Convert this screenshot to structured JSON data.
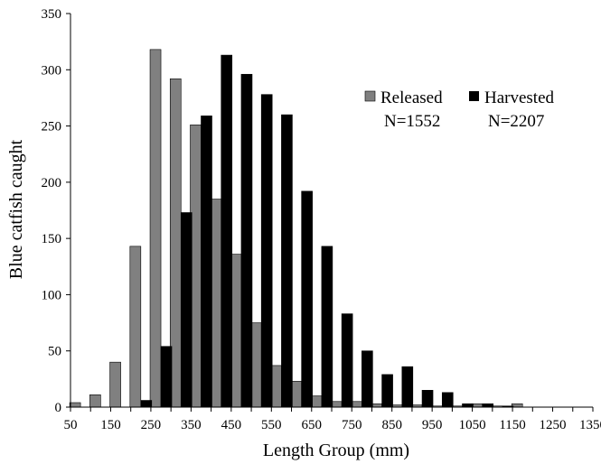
{
  "chart_data": {
    "type": "bar",
    "title": "",
    "xlabel": "Length Group (mm)",
    "ylabel": "Blue catfish caught",
    "ylim": [
      0,
      350
    ],
    "yticks": [
      0,
      50,
      100,
      150,
      200,
      250,
      300,
      350
    ],
    "xlim": [
      50,
      1350
    ],
    "xticks": [
      50,
      150,
      250,
      350,
      450,
      550,
      650,
      750,
      850,
      950,
      1050,
      1150,
      1250,
      1350
    ],
    "bin_width": 50,
    "bin_starts": [
      50,
      100,
      150,
      200,
      250,
      300,
      350,
      400,
      450,
      500,
      550,
      600,
      650,
      700,
      750,
      800,
      850,
      900,
      950,
      1000,
      1050,
      1100,
      1150,
      1200,
      1250,
      1300
    ],
    "grid": false,
    "legend_position": "top-right",
    "series": [
      {
        "name": "Released",
        "count_label": "N=1552",
        "color": "#808080",
        "values": [
          4,
          11,
          40,
          143,
          318,
          292,
          251,
          185,
          136,
          75,
          37,
          23,
          10,
          5,
          5,
          3,
          2,
          2,
          1,
          1,
          3,
          1,
          3,
          0,
          0,
          0
        ]
      },
      {
        "name": "Harvested",
        "count_label": "N=2207",
        "color": "#000000",
        "values": [
          0,
          0,
          0,
          6,
          54,
          173,
          259,
          313,
          296,
          278,
          260,
          192,
          143,
          83,
          50,
          29,
          36,
          15,
          13,
          3,
          3,
          1,
          0,
          0,
          0,
          0
        ]
      }
    ]
  }
}
